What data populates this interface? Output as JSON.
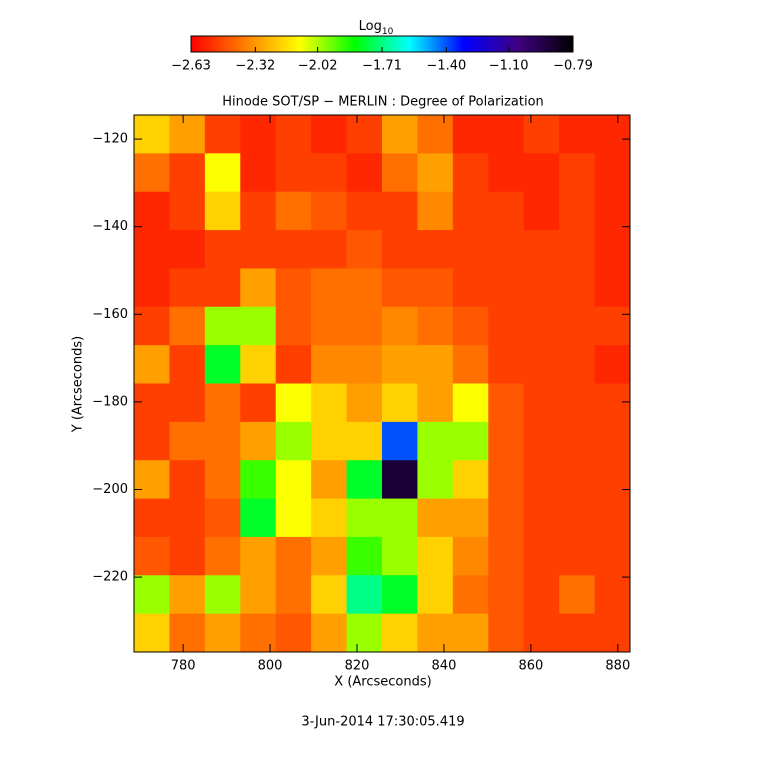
{
  "chart_data": {
    "type": "heatmap",
    "title": "Hinode SOT/SP − MERLIN : Degree of Polarization",
    "xlabel": "X (Arcseconds)",
    "ylabel": "Y (Arcseconds)",
    "footer": "3-Jun-2014 17:30:05.419",
    "colorbar_label": "Log",
    "colorbar_label_sub": "10",
    "colormap": [
      "#ff0000",
      "#ff8000",
      "#ffff00",
      "#00ff00",
      "#00ffff",
      "#0000ff",
      "#400080",
      "#000000"
    ],
    "zlim": [
      -2.63,
      -0.79
    ],
    "zticks": [
      {
        "value": -2.63,
        "label": "−2.63"
      },
      {
        "value": -2.32,
        "label": "−2.32"
      },
      {
        "value": -2.02,
        "label": "−2.02"
      },
      {
        "value": -1.71,
        "label": "−1.71"
      },
      {
        "value": -1.4,
        "label": "−1.40"
      },
      {
        "value": -1.1,
        "label": "−1.10"
      },
      {
        "value": -0.79,
        "label": "−0.79"
      }
    ],
    "xlim": [
      768.7,
      882.8
    ],
    "ylim": [
      -114.5,
      -237.1
    ],
    "xticks": [
      780,
      800,
      820,
      840,
      860,
      880
    ],
    "yticks": [
      {
        "value": -120,
        "label": "−120"
      },
      {
        "value": -140,
        "label": "−140"
      },
      {
        "value": -160,
        "label": "−160"
      },
      {
        "value": -180,
        "label": "−180"
      },
      {
        "value": -200,
        "label": "−200"
      },
      {
        "value": -220,
        "label": "−220"
      }
    ],
    "z": [
      [
        -2.2,
        -2.3,
        -2.5,
        -2.55,
        -2.5,
        -2.55,
        -2.5,
        -2.3,
        -2.4,
        -2.55,
        -2.55,
        -2.5,
        -2.55,
        -2.55
      ],
      [
        -2.4,
        -2.5,
        -2.1,
        -2.55,
        -2.5,
        -2.5,
        -2.55,
        -2.4,
        -2.3,
        -2.5,
        -2.55,
        -2.55,
        -2.5,
        -2.55
      ],
      [
        -2.55,
        -2.5,
        -2.2,
        -2.5,
        -2.4,
        -2.45,
        -2.5,
        -2.5,
        -2.35,
        -2.5,
        -2.5,
        -2.55,
        -2.5,
        -2.55
      ],
      [
        -2.55,
        -2.55,
        -2.5,
        -2.5,
        -2.5,
        -2.5,
        -2.45,
        -2.5,
        -2.5,
        -2.5,
        -2.5,
        -2.5,
        -2.5,
        -2.55
      ],
      [
        -2.55,
        -2.5,
        -2.5,
        -2.3,
        -2.45,
        -2.4,
        -2.4,
        -2.45,
        -2.45,
        -2.5,
        -2.5,
        -2.5,
        -2.5,
        -2.55
      ],
      [
        -2.5,
        -2.4,
        -2.0,
        -2.0,
        -2.45,
        -2.4,
        -2.4,
        -2.35,
        -2.4,
        -2.45,
        -2.5,
        -2.5,
        -2.5,
        -2.5
      ],
      [
        -2.3,
        -2.5,
        -1.8,
        -2.2,
        -2.5,
        -2.35,
        -2.35,
        -2.3,
        -2.3,
        -2.4,
        -2.5,
        -2.5,
        -2.5,
        -2.55
      ],
      [
        -2.5,
        -2.5,
        -2.4,
        -2.5,
        -2.1,
        -2.2,
        -2.3,
        -2.2,
        -2.3,
        -2.1,
        -2.45,
        -2.5,
        -2.5,
        -2.5
      ],
      [
        -2.5,
        -2.4,
        -2.4,
        -2.3,
        -2.0,
        -2.2,
        -2.2,
        -1.4,
        -2.0,
        -2.0,
        -2.45,
        -2.5,
        -2.5,
        -2.5
      ],
      [
        -2.3,
        -2.5,
        -2.4,
        -1.9,
        -2.1,
        -2.3,
        -1.8,
        -0.9,
        -2.0,
        -2.2,
        -2.45,
        -2.5,
        -2.5,
        -2.5
      ],
      [
        -2.5,
        -2.5,
        -2.45,
        -1.8,
        -2.1,
        -2.2,
        -2.0,
        -2.0,
        -2.3,
        -2.3,
        -2.45,
        -2.5,
        -2.5,
        -2.5
      ],
      [
        -2.45,
        -2.5,
        -2.4,
        -2.3,
        -2.4,
        -2.3,
        -1.9,
        -2.0,
        -2.2,
        -2.35,
        -2.45,
        -2.5,
        -2.5,
        -2.5
      ],
      [
        -2.0,
        -2.3,
        -2.0,
        -2.3,
        -2.4,
        -2.2,
        -1.7,
        -1.8,
        -2.2,
        -2.4,
        -2.45,
        -2.5,
        -2.4,
        -2.5
      ],
      [
        -2.2,
        -2.4,
        -2.3,
        -2.4,
        -2.45,
        -2.3,
        -2.0,
        -2.2,
        -2.3,
        -2.3,
        -2.45,
        -2.5,
        -2.5,
        -2.5
      ]
    ]
  }
}
